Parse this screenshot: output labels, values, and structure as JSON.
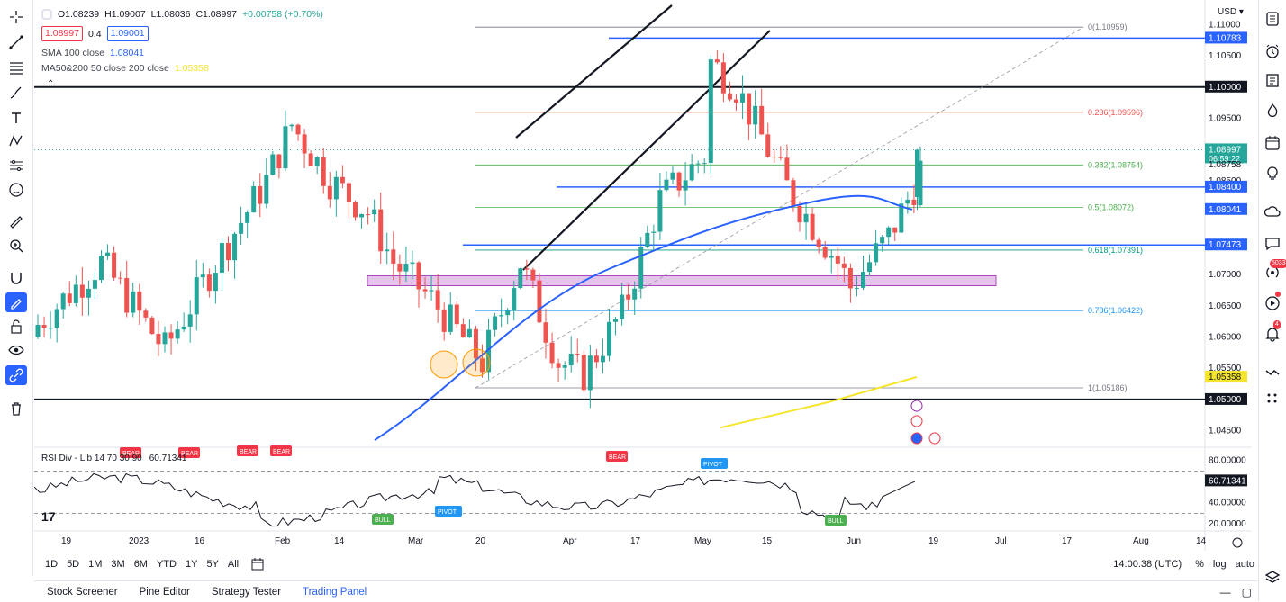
{
  "ohlc": {
    "o": "O1.08239",
    "h": "H1.09007",
    "l": "L1.08036",
    "c": "C1.08997",
    "chg": "+0.00758 (+0.70%)"
  },
  "price_boxes": {
    "bid": "1.08997",
    "spread": "0.4",
    "ask": "1.09001"
  },
  "indicators": {
    "sma_label": "SMA 100 close",
    "sma_value": "1.08041",
    "ma_label": "MA50&200 50 close 200 close",
    "ma_value": "1.05358"
  },
  "currency": "USD",
  "rsi_legend": "RSI Div - Lib 14 70 30 90",
  "rsi_value": "60.71341",
  "colors": {
    "up": "#26a69a",
    "down": "#ef5350",
    "sma": "#2962ff",
    "ma200": "#f5e52c",
    "hline": "#2962ff",
    "zone": "#ce93d8"
  },
  "chart_data": {
    "type": "candlestick",
    "y_range": [
      1.0425,
      1.1125
    ],
    "price_ticks": [
      "1.11000",
      "1.10500",
      "1.09500",
      "1.08500",
      "1.07000",
      "1.06500",
      "1.06000",
      "1.05500",
      "1.04500"
    ],
    "price_tick_values": [
      1.11,
      1.105,
      1.095,
      1.085,
      1.07,
      1.065,
      1.06,
      1.055,
      1.045
    ],
    "price_labels": [
      {
        "text": "1.10783",
        "value": 1.10783,
        "style": "blue"
      },
      {
        "text": "1.10000",
        "value": 1.1,
        "style": "black"
      },
      {
        "text": "1.08997",
        "value": 1.08997,
        "style": "green",
        "sub": "06:59:22"
      },
      {
        "text": "1.08758",
        "value": 1.08758,
        "style": "plain"
      },
      {
        "text": "1.08400",
        "value": 1.084,
        "style": "blue"
      },
      {
        "text": "1.08041",
        "value": 1.08041,
        "style": "blue"
      },
      {
        "text": "1.07473",
        "value": 1.07473,
        "style": "blue"
      },
      {
        "text": "1.05358",
        "value": 1.05358,
        "style": "yellow"
      },
      {
        "text": "1.05000",
        "value": 1.05,
        "style": "black"
      }
    ],
    "fib_levels": [
      {
        "label": "0(1.10959)",
        "value": 1.10959,
        "color": "#787b86"
      },
      {
        "label": "0.236(1.09596)",
        "value": 1.09596,
        "color": "#ef5350"
      },
      {
        "label": "0.382(1.08754)",
        "value": 1.08754,
        "color": "#4caf50"
      },
      {
        "label": "0.5(1.08072)",
        "value": 1.08072,
        "color": "#4caf50"
      },
      {
        "label": "0.618(1.07391)",
        "value": 1.07391,
        "color": "#089981"
      },
      {
        "label": "0.786(1.06422)",
        "value": 1.06422,
        "color": "#2196f3"
      },
      {
        "label": "1(1.05186)",
        "value": 1.05186,
        "color": "#787b86"
      }
    ],
    "x_labels": [
      "19",
      "2023",
      "16",
      "Feb",
      "14",
      "Mar",
      "20",
      "Apr",
      "17",
      "May",
      "15",
      "Jun",
      "19",
      "Jul",
      "17",
      "Aug",
      "14"
    ],
    "rsi_ticks": [
      "80.00000",
      "40.00000",
      "20.00000"
    ],
    "rsi_current": "60.71341",
    "rsi_markers": [
      {
        "text": "BEAR",
        "type": "bear"
      },
      {
        "text": "BEAR",
        "type": "bear"
      },
      {
        "text": "BEAR",
        "type": "bear"
      },
      {
        "text": "BEAR",
        "type": "bear"
      },
      {
        "text": "BEAR",
        "type": "bear"
      },
      {
        "text": "PIVOT",
        "type": "pivot"
      },
      {
        "text": "BULL",
        "type": "bull"
      },
      {
        "text": "PIVOT",
        "type": "pivot"
      },
      {
        "text": "BULL",
        "type": "bull"
      }
    ]
  },
  "timeframes": [
    "1D",
    "5D",
    "1M",
    "3M",
    "6M",
    "YTD",
    "1Y",
    "5Y",
    "All"
  ],
  "clock": "14:00:38 (UTC)",
  "scale_opts": [
    "%",
    "log",
    "auto"
  ],
  "footer_tabs": [
    "Stock Screener",
    "Pine Editor",
    "Strategy Tester",
    "Trading Panel"
  ],
  "notif_badges": {
    "ideas": "5033",
    "alerts": "4"
  }
}
